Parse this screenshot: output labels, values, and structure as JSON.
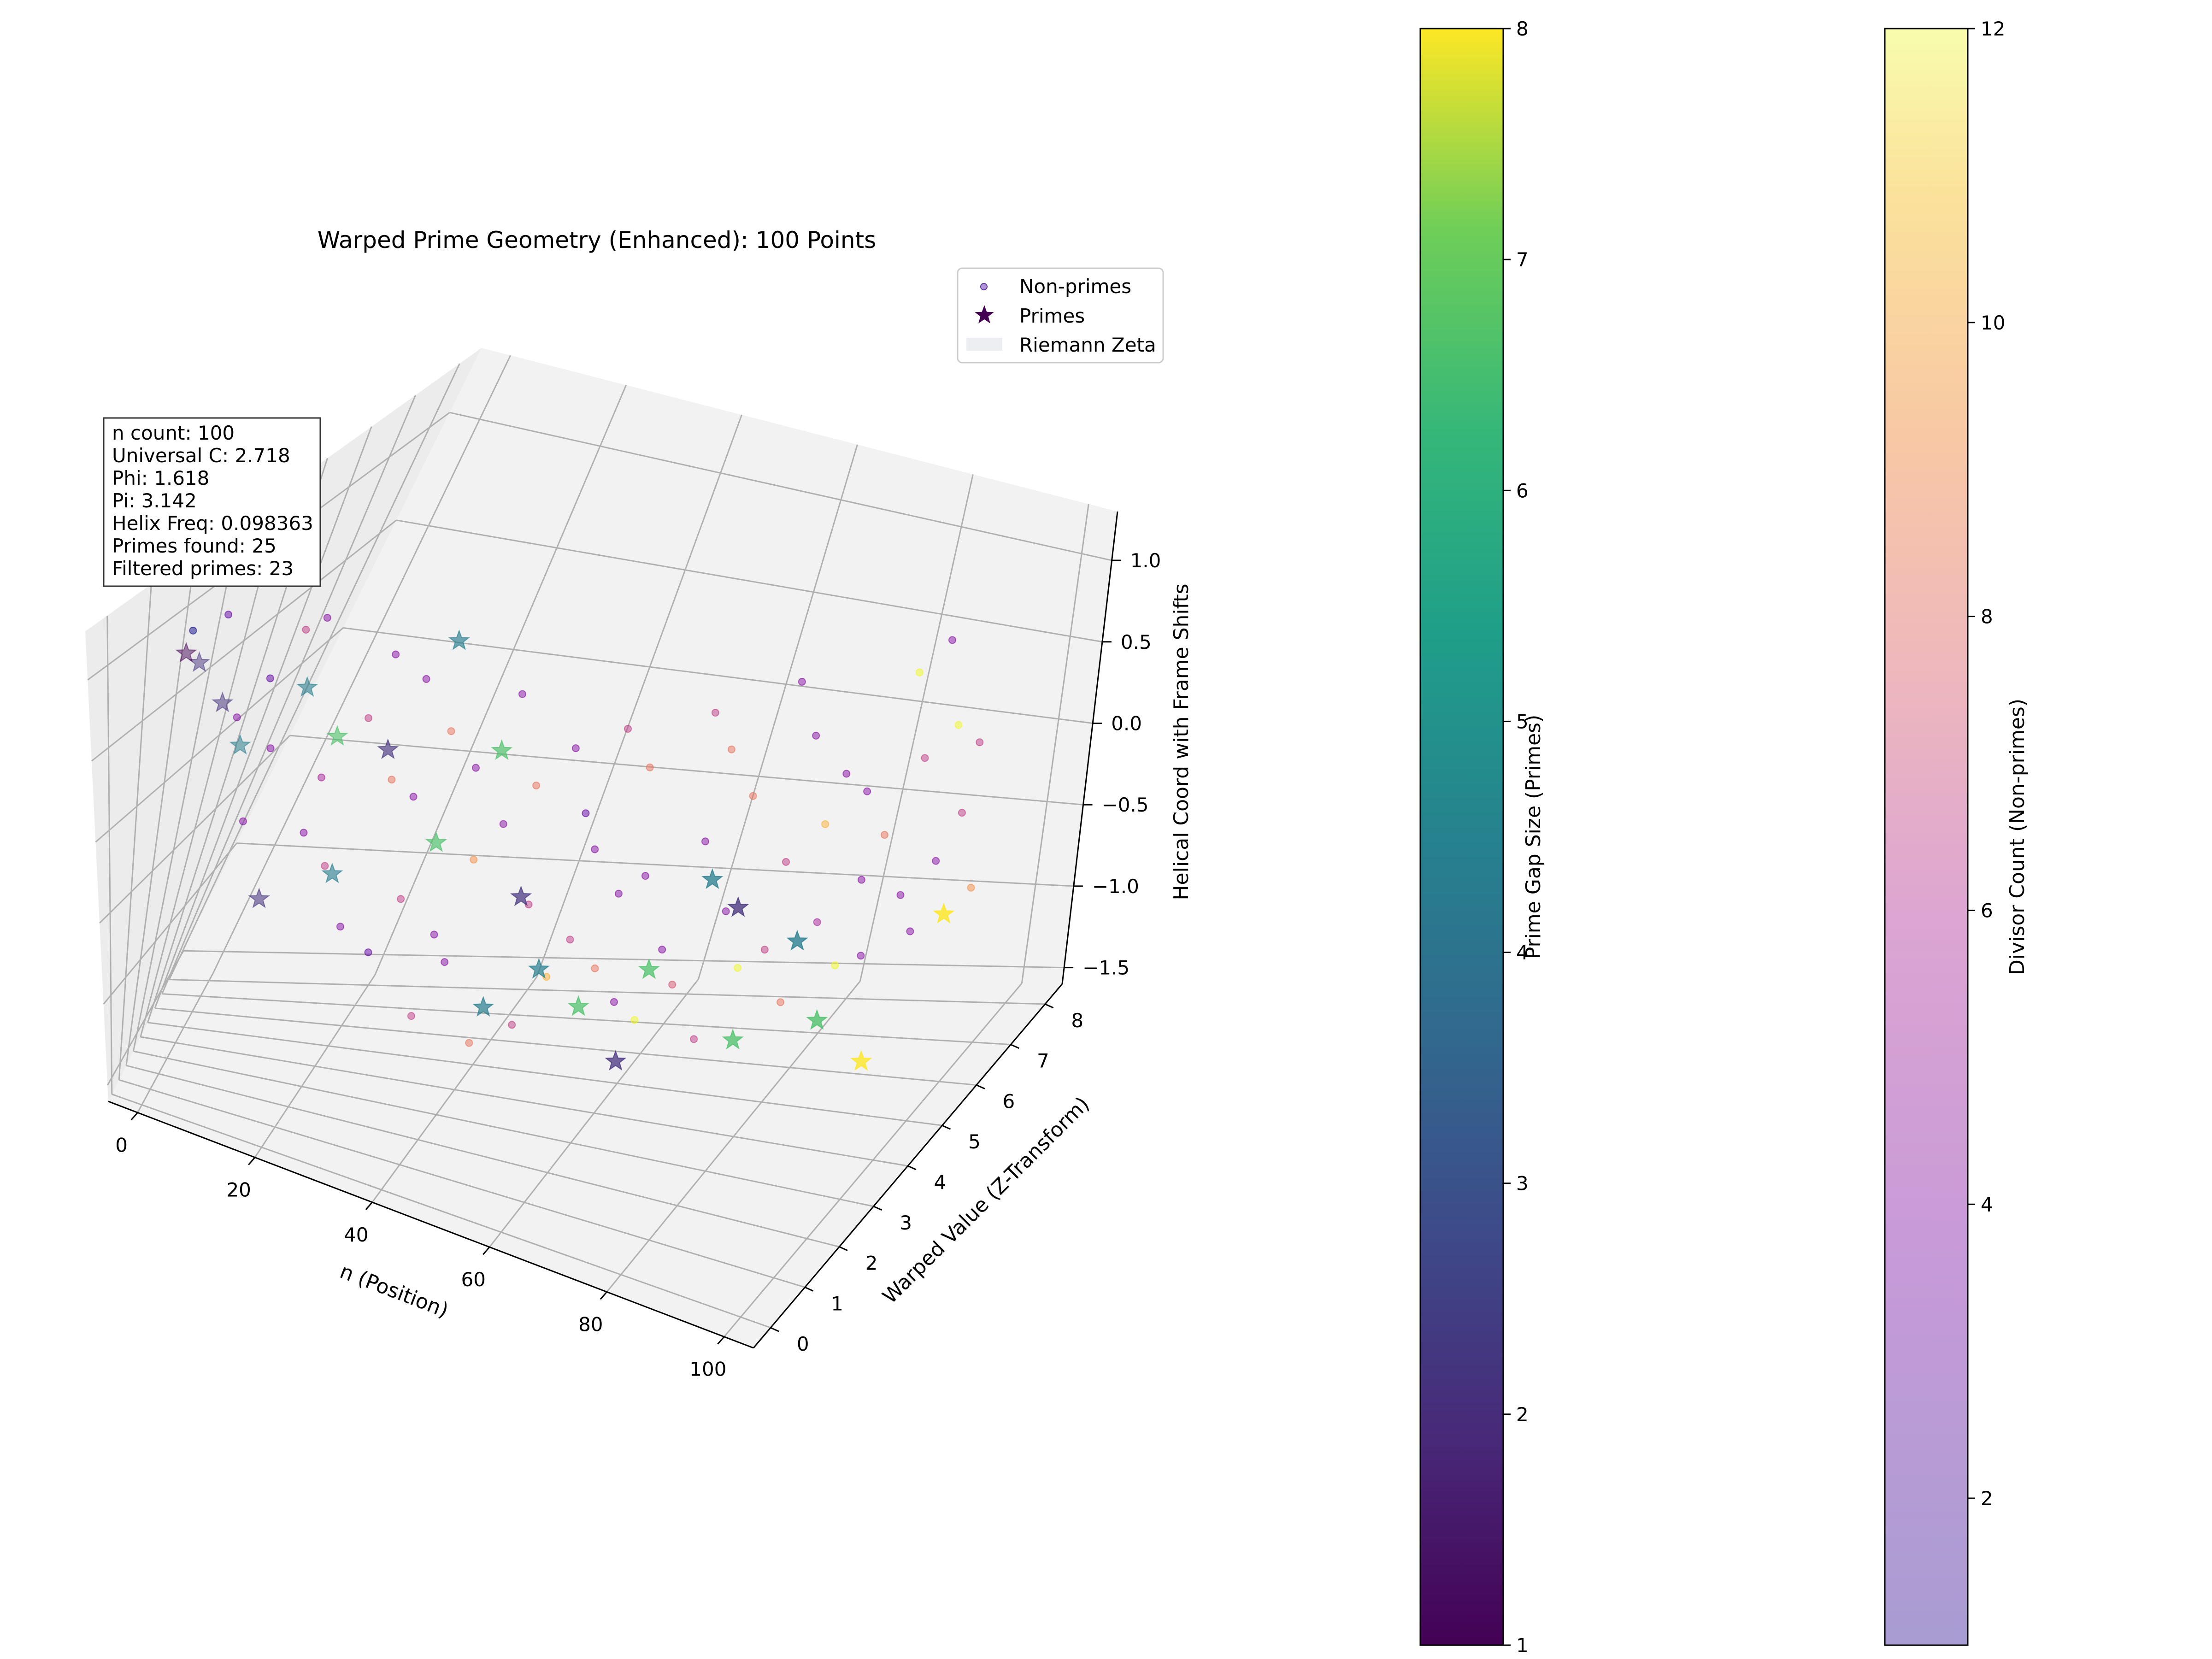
{
  "chart_data": {
    "type": "scatter",
    "projection": "3d",
    "title": "Warped Prime Geometry (Enhanced): 100 Points",
    "xlabel": "n (Position)",
    "ylabel": "Warped Value (Z-Transform)",
    "zlabel": "Helical Coord with Frame Shifts",
    "xlim": [
      -5,
      105
    ],
    "ylim": [
      -0.5,
      8.5
    ],
    "zlim": [
      -1.6,
      1.3
    ],
    "x_ticks": [
      "0",
      "20",
      "40",
      "60",
      "80",
      "100"
    ],
    "y_ticks": [
      "0",
      "1",
      "2",
      "3",
      "4",
      "5",
      "6",
      "7",
      "8"
    ],
    "z_ticks": [
      "−1.5",
      "−1.0",
      "−0.5",
      "0.0",
      "0.5",
      "1.0"
    ],
    "grid": true,
    "legend": {
      "placement": "top-right",
      "entries": [
        {
          "label": "Non-primes",
          "marker": "circle",
          "color": "#7b4fc6"
        },
        {
          "label": "Primes",
          "marker": "star",
          "color": "#440154"
        },
        {
          "label": "Riemann Zeta",
          "marker": "patch",
          "color": "#eceef2"
        }
      ]
    },
    "info_box": {
      "lines": [
        "n count: 100",
        "Universal C: 2.718",
        "Phi: 1.618",
        "Pi: 3.142",
        "Helix Freq: 0.098363",
        "Primes found: 25",
        "Filtered primes: 23"
      ]
    },
    "colorbars": [
      {
        "label": "Prime Gap Size (Primes)",
        "colormap": "viridis",
        "range": [
          1,
          8
        ],
        "ticks": [
          "1",
          "2",
          "3",
          "4",
          "5",
          "6",
          "7",
          "8"
        ]
      },
      {
        "label": "Divisor Count (Non-primes)",
        "colormap": "plasma",
        "alpha": 0.5,
        "range": [
          1,
          12
        ],
        "ticks": [
          "2",
          "4",
          "6",
          "8",
          "10",
          "12"
        ]
      }
    ],
    "series": [
      {
        "name": "Primes",
        "marker": "star",
        "points": [
          {
            "x": 2,
            "y": 0.9,
            "z": 0.98,
            "gap": 1
          },
          {
            "x": 3,
            "y": 1.1,
            "z": 0.9,
            "gap": 2
          },
          {
            "x": 5,
            "y": 1.5,
            "z": 0.62,
            "gap": 2
          },
          {
            "x": 7,
            "y": 1.8,
            "z": 0.35,
            "gap": 4
          },
          {
            "x": 11,
            "y": 2.3,
            "z": -0.55,
            "gap": 2
          },
          {
            "x": 13,
            "y": 2.5,
            "z": 0.62,
            "gap": 4
          },
          {
            "x": 17,
            "y": 2.9,
            "z": 0.32,
            "gap": 6
          },
          {
            "x": 19,
            "y": 3.1,
            "z": -0.45,
            "gap": 4
          },
          {
            "x": 23,
            "y": 3.4,
            "z": 0.22,
            "gap": 2
          },
          {
            "x": 29,
            "y": 3.8,
            "z": 0.8,
            "gap": 4
          },
          {
            "x": 31,
            "y": 3.9,
            "z": -0.3,
            "gap": 6
          },
          {
            "x": 37,
            "y": 4.2,
            "z": 0.2,
            "gap": 6
          },
          {
            "x": 41,
            "y": 4.4,
            "z": -1.2,
            "gap": 4
          },
          {
            "x": 43,
            "y": 4.5,
            "z": -0.6,
            "gap": 2
          },
          {
            "x": 47,
            "y": 4.7,
            "z": -1.0,
            "gap": 4
          },
          {
            "x": 53,
            "y": 4.9,
            "z": -1.2,
            "gap": 6
          },
          {
            "x": 59,
            "y": 5.1,
            "z": -1.5,
            "gap": 2
          },
          {
            "x": 61,
            "y": 5.2,
            "z": -1.0,
            "gap": 6
          },
          {
            "x": 67,
            "y": 5.4,
            "z": -0.5,
            "gap": 4
          },
          {
            "x": 71,
            "y": 5.5,
            "z": -0.65,
            "gap": 2
          },
          {
            "x": 73,
            "y": 5.6,
            "z": -1.4,
            "gap": 6
          },
          {
            "x": 79,
            "y": 5.8,
            "z": -0.85,
            "gap": 4
          },
          {
            "x": 83,
            "y": 5.9,
            "z": -1.3,
            "gap": 6
          },
          {
            "x": 89,
            "y": 6.1,
            "z": -1.55,
            "gap": 8
          },
          {
            "x": 97,
            "y": 6.3,
            "z": -0.7,
            "gap": 8
          }
        ]
      },
      {
        "name": "Non-primes",
        "marker": "circle",
        "points": [
          {
            "x": 1,
            "y": 1.2,
            "z": 1.05,
            "d": 1
          },
          {
            "x": 4,
            "y": 1.6,
            "z": 1.1,
            "d": 3
          },
          {
            "x": 6,
            "y": 1.8,
            "z": 0.5,
            "d": 4
          },
          {
            "x": 8,
            "y": 2.0,
            "z": -0.1,
            "d": 4
          },
          {
            "x": 9,
            "y": 2.1,
            "z": 0.7,
            "d": 3
          },
          {
            "x": 10,
            "y": 2.2,
            "z": 0.3,
            "d": 4
          },
          {
            "x": 12,
            "y": 2.4,
            "z": 0.95,
            "d": 6
          },
          {
            "x": 14,
            "y": 2.6,
            "z": 1.0,
            "d": 4
          },
          {
            "x": 15,
            "y": 2.7,
            "z": -0.2,
            "d": 4
          },
          {
            "x": 16,
            "y": 2.8,
            "z": 0.1,
            "d": 5
          },
          {
            "x": 18,
            "y": 3.0,
            "z": -0.4,
            "d": 6
          },
          {
            "x": 20,
            "y": 3.2,
            "z": 0.4,
            "d": 6
          },
          {
            "x": 21,
            "y": 3.3,
            "z": -0.75,
            "d": 4
          },
          {
            "x": 22,
            "y": 3.3,
            "z": 0.75,
            "d": 4
          },
          {
            "x": 24,
            "y": 3.5,
            "z": 0.05,
            "d": 8
          },
          {
            "x": 25,
            "y": 3.6,
            "z": -0.9,
            "d": 3
          },
          {
            "x": 26,
            "y": 3.6,
            "z": 0.6,
            "d": 4
          },
          {
            "x": 27,
            "y": 3.7,
            "z": -0.05,
            "d": 4
          },
          {
            "x": 28,
            "y": 3.7,
            "z": -0.6,
            "d": 6
          },
          {
            "x": 30,
            "y": 3.9,
            "z": 0.3,
            "d": 8
          },
          {
            "x": 32,
            "y": 4.0,
            "z": -1.25,
            "d": 6
          },
          {
            "x": 33,
            "y": 4.0,
            "z": -0.8,
            "d": 4
          },
          {
            "x": 34,
            "y": 4.1,
            "z": 0.1,
            "d": 4
          },
          {
            "x": 35,
            "y": 4.1,
            "z": -0.95,
            "d": 4
          },
          {
            "x": 36,
            "y": 4.2,
            "z": -0.4,
            "d": 9
          },
          {
            "x": 38,
            "y": 4.3,
            "z": 0.5,
            "d": 4
          },
          {
            "x": 39,
            "y": 4.3,
            "z": -0.2,
            "d": 4
          },
          {
            "x": 40,
            "y": 4.4,
            "z": -1.4,
            "d": 8
          },
          {
            "x": 42,
            "y": 4.5,
            "z": 0.0,
            "d": 8
          },
          {
            "x": 44,
            "y": 4.6,
            "z": -0.65,
            "d": 6
          },
          {
            "x": 45,
            "y": 4.6,
            "z": -1.3,
            "d": 6
          },
          {
            "x": 46,
            "y": 4.7,
            "z": 0.2,
            "d": 4
          },
          {
            "x": 48,
            "y": 4.8,
            "z": -1.05,
            "d": 10
          },
          {
            "x": 49,
            "y": 4.8,
            "z": -0.15,
            "d": 3
          },
          {
            "x": 50,
            "y": 4.9,
            "z": -0.85,
            "d": 6
          },
          {
            "x": 51,
            "y": 4.9,
            "z": -0.35,
            "d": 4
          },
          {
            "x": 52,
            "y": 5.0,
            "z": 0.3,
            "d": 6
          },
          {
            "x": 54,
            "y": 5.0,
            "z": -1.0,
            "d": 8
          },
          {
            "x": 55,
            "y": 5.1,
            "z": -0.6,
            "d": 4
          },
          {
            "x": 56,
            "y": 5.1,
            "z": 0.1,
            "d": 8
          },
          {
            "x": 57,
            "y": 5.2,
            "z": -1.2,
            "d": 4
          },
          {
            "x": 58,
            "y": 5.2,
            "z": -0.5,
            "d": 4
          },
          {
            "x": 60,
            "y": 5.3,
            "z": -1.3,
            "d": 12
          },
          {
            "x": 62,
            "y": 5.3,
            "z": -0.9,
            "d": 4
          },
          {
            "x": 63,
            "y": 5.4,
            "z": 0.4,
            "d": 6
          },
          {
            "x": 64,
            "y": 5.4,
            "z": -1.1,
            "d": 7
          },
          {
            "x": 65,
            "y": 5.4,
            "z": -0.3,
            "d": 4
          },
          {
            "x": 66,
            "y": 5.5,
            "z": 0.2,
            "d": 8
          },
          {
            "x": 68,
            "y": 5.5,
            "z": -1.4,
            "d": 6
          },
          {
            "x": 69,
            "y": 5.6,
            "z": -0.7,
            "d": 4
          },
          {
            "x": 70,
            "y": 5.6,
            "z": -0.05,
            "d": 8
          },
          {
            "x": 72,
            "y": 5.6,
            "z": -1.0,
            "d": 12
          },
          {
            "x": 74,
            "y": 5.7,
            "z": 0.6,
            "d": 4
          },
          {
            "x": 75,
            "y": 5.7,
            "z": -0.9,
            "d": 6
          },
          {
            "x": 76,
            "y": 5.7,
            "z": -0.4,
            "d": 6
          },
          {
            "x": 77,
            "y": 5.8,
            "z": 0.3,
            "d": 4
          },
          {
            "x": 78,
            "y": 5.8,
            "z": -1.2,
            "d": 8
          },
          {
            "x": 80,
            "y": 5.9,
            "z": -0.2,
            "d": 10
          },
          {
            "x": 81,
            "y": 5.9,
            "z": -0.75,
            "d": 5
          },
          {
            "x": 82,
            "y": 5.9,
            "z": 0.1,
            "d": 4
          },
          {
            "x": 84,
            "y": 6.0,
            "z": -1.0,
            "d": 12
          },
          {
            "x": 85,
            "y": 6.0,
            "z": 0.0,
            "d": 4
          },
          {
            "x": 86,
            "y": 6.0,
            "z": -0.5,
            "d": 4
          },
          {
            "x": 87,
            "y": 6.1,
            "z": -0.95,
            "d": 4
          },
          {
            "x": 88,
            "y": 6.1,
            "z": -0.25,
            "d": 8
          },
          {
            "x": 90,
            "y": 6.1,
            "z": 0.7,
            "d": 12
          },
          {
            "x": 91,
            "y": 6.2,
            "z": -0.6,
            "d": 4
          },
          {
            "x": 92,
            "y": 6.2,
            "z": 0.2,
            "d": 6
          },
          {
            "x": 93,
            "y": 6.2,
            "z": -0.8,
            "d": 4
          },
          {
            "x": 94,
            "y": 6.2,
            "z": 0.9,
            "d": 4
          },
          {
            "x": 95,
            "y": 6.3,
            "z": -0.4,
            "d": 4
          },
          {
            "x": 96,
            "y": 6.3,
            "z": 0.4,
            "d": 12
          },
          {
            "x": 98,
            "y": 6.3,
            "z": -0.1,
            "d": 6
          },
          {
            "x": 99,
            "y": 6.4,
            "z": 0.3,
            "d": 6
          },
          {
            "x": 100,
            "y": 6.4,
            "z": -0.55,
            "d": 9
          }
        ]
      }
    ]
  }
}
